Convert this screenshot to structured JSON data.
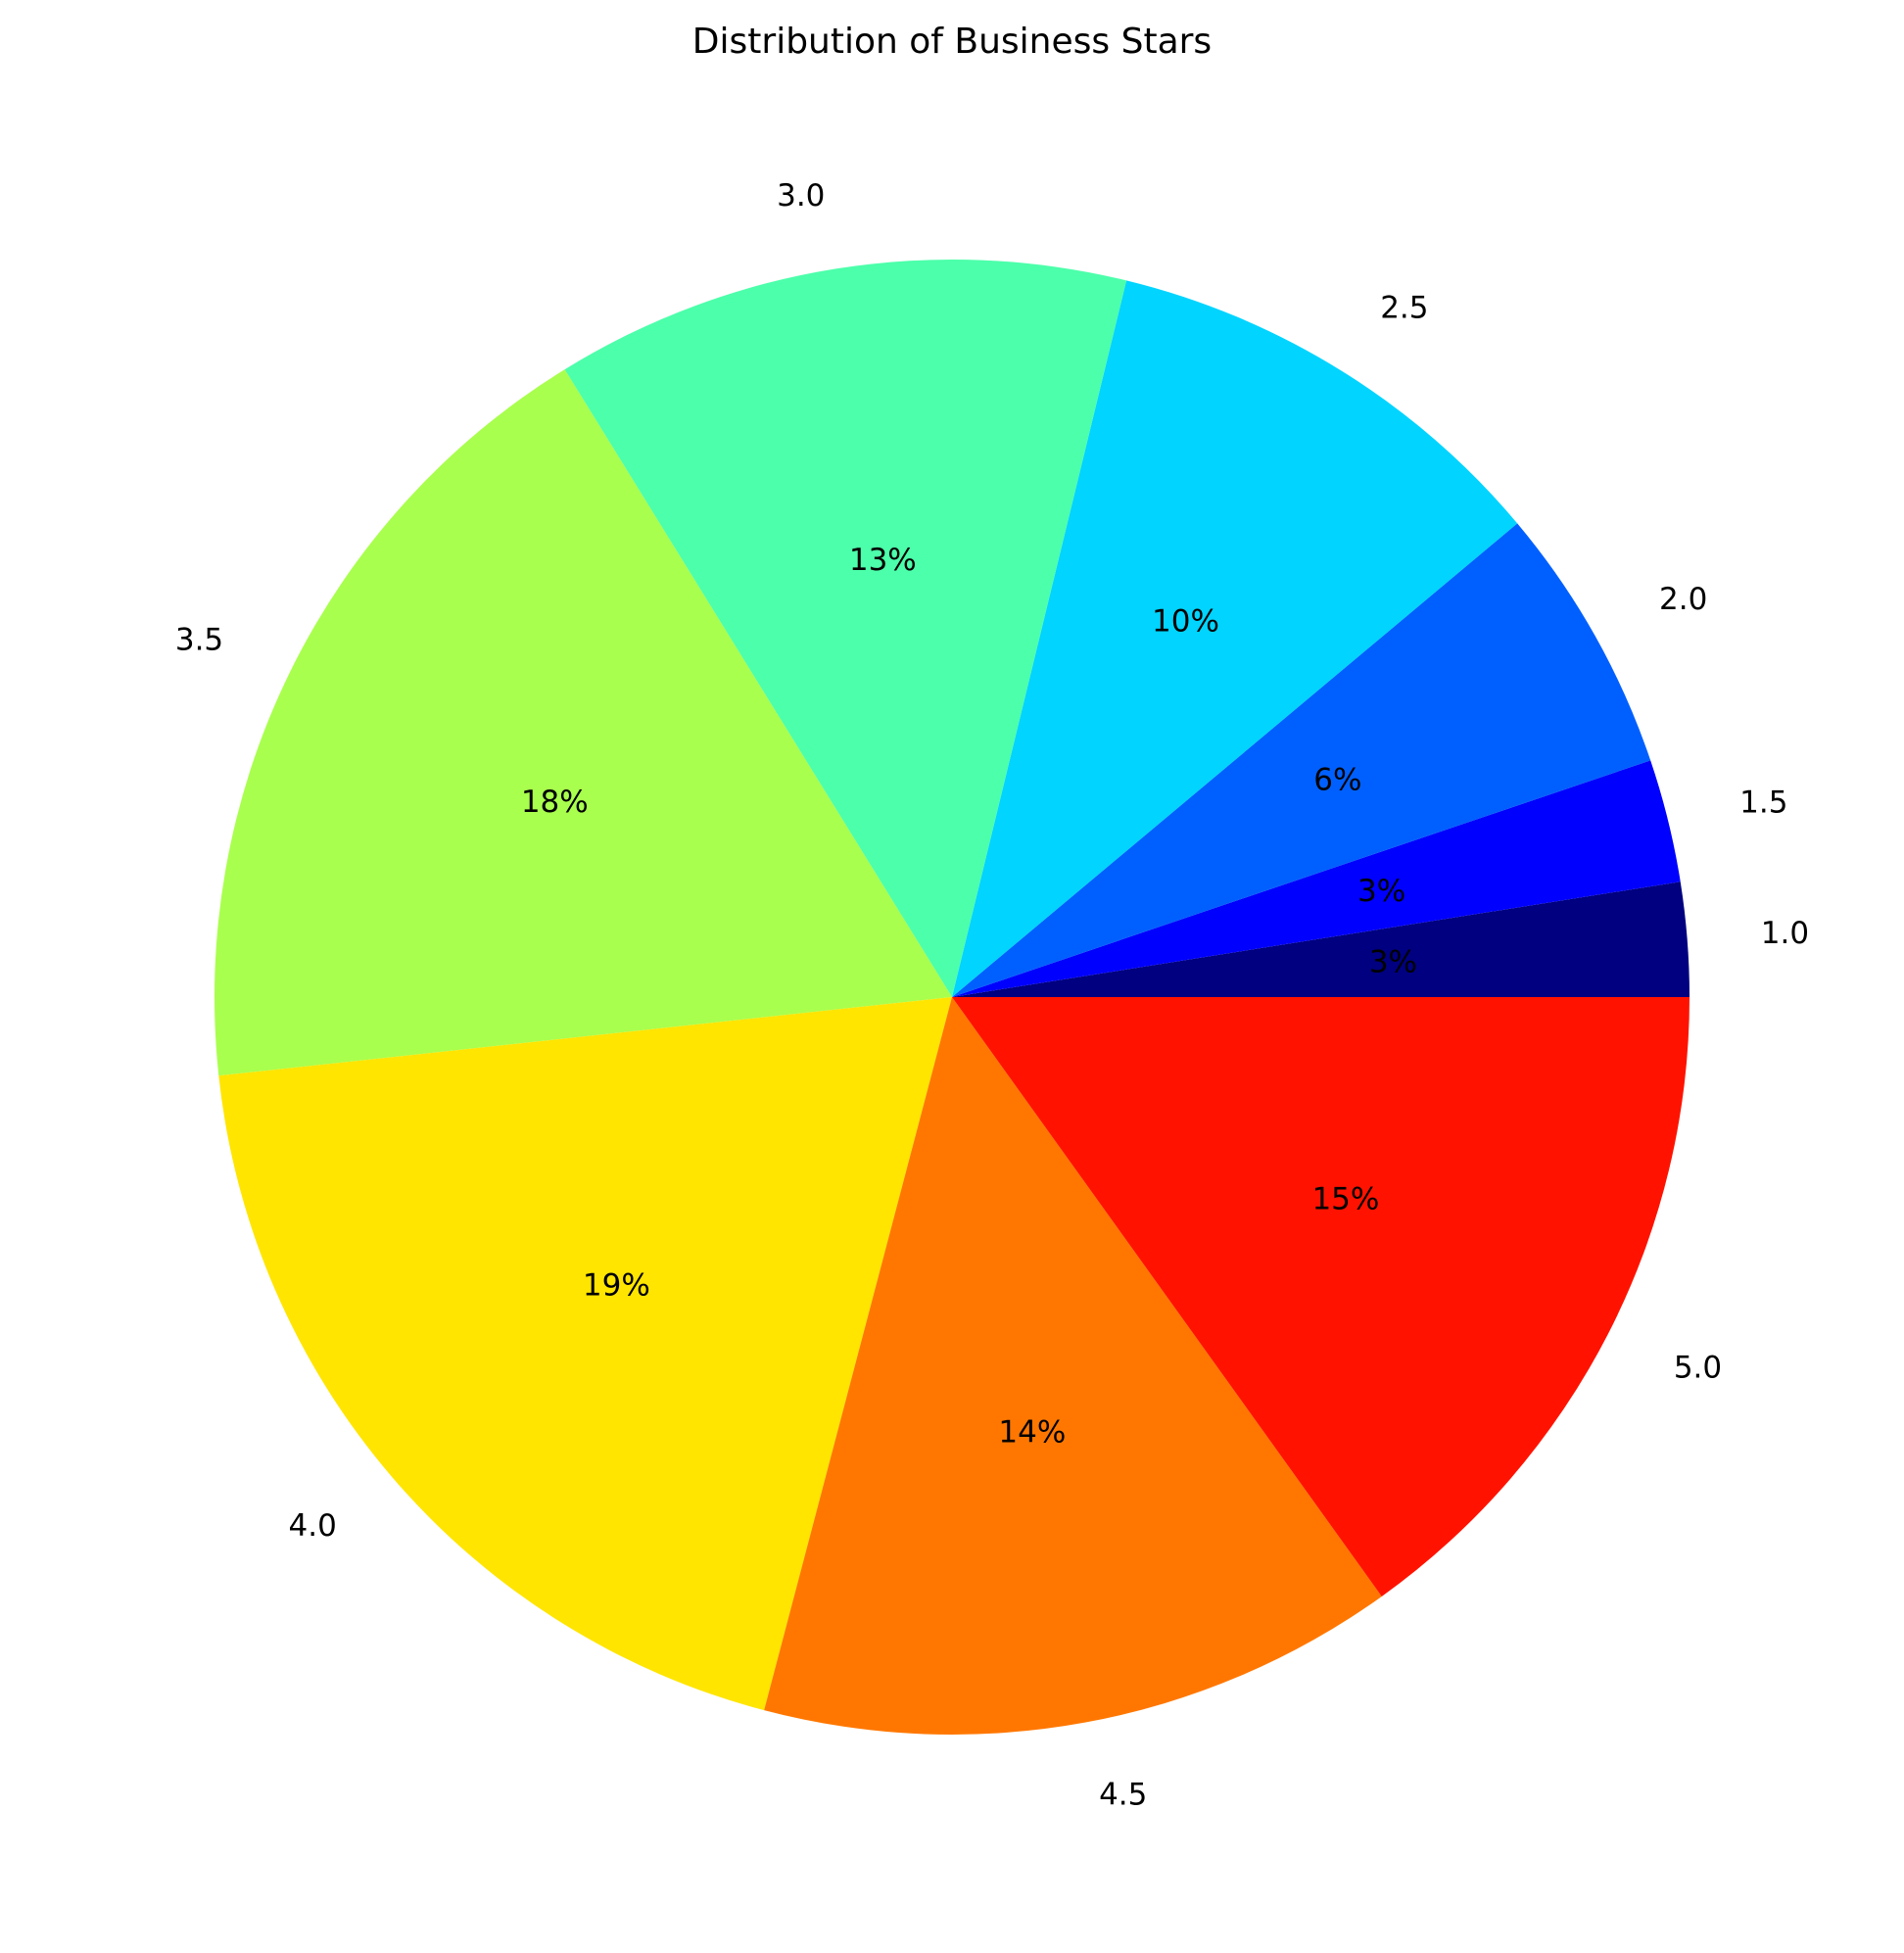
{
  "chart_data": {
    "type": "pie",
    "title": "Distribution of Business Stars",
    "categories": [
      "1.0",
      "1.5",
      "2.0",
      "2.5",
      "3.0",
      "3.5",
      "4.0",
      "4.5",
      "5.0"
    ],
    "values": [
      2.5,
      2.7,
      5.9,
      10.1,
      12.6,
      17.9,
      19.2,
      14.0,
      15.1
    ],
    "percent_labels": [
      "3%",
      "3%",
      "6%",
      "10%",
      "13%",
      "18%",
      "19%",
      "14%",
      "15%"
    ],
    "colors": [
      "#000080",
      "#0000ff",
      "#0060ff",
      "#00d4ff",
      "#4cffaa",
      "#a9ff4d",
      "#ffe500",
      "#ff7700",
      "#ff1300"
    ],
    "start_angle": 0,
    "direction": "counterclockwise",
    "legend": "none"
  }
}
